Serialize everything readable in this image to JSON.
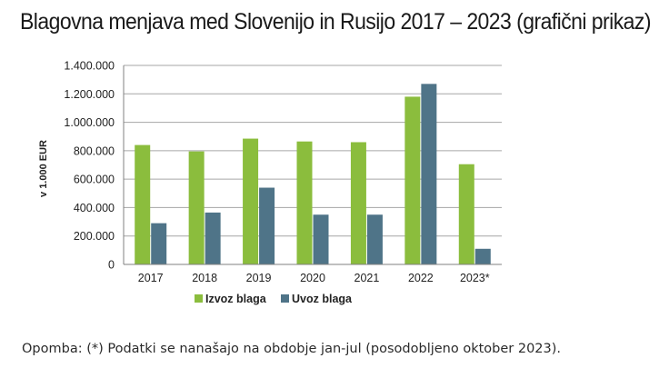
{
  "title": "Blagovna menjava med Slovenijo in Rusijo 2017 – 2023 (grafični prikaz)",
  "note": "Opomba: (*) Podatki se nanašajo na obdobje jan-jul (posodobljeno oktober 2023).",
  "chart_data": {
    "type": "bar",
    "categories": [
      "2017",
      "2018",
      "2019",
      "2020",
      "2021",
      "2022",
      "2023*"
    ],
    "series": [
      {
        "name": "Izvoz blaga",
        "color": "#8bbd3d",
        "values": [
          840000,
          795000,
          885000,
          865000,
          860000,
          1180000,
          705000
        ]
      },
      {
        "name": "Uvoz blaga",
        "color": "#4f7488",
        "values": [
          290000,
          365000,
          540000,
          350000,
          350000,
          1270000,
          110000
        ]
      }
    ],
    "ylabel": "v 1.000 EUR",
    "xlabel": "",
    "ylim": [
      0,
      1400000
    ],
    "yticks": [
      "0",
      "200.000",
      "400.000",
      "600.000",
      "800.000",
      "1.000.000",
      "1.200.000",
      "1.400.000"
    ],
    "grid": true,
    "legend_position": "bottom"
  }
}
